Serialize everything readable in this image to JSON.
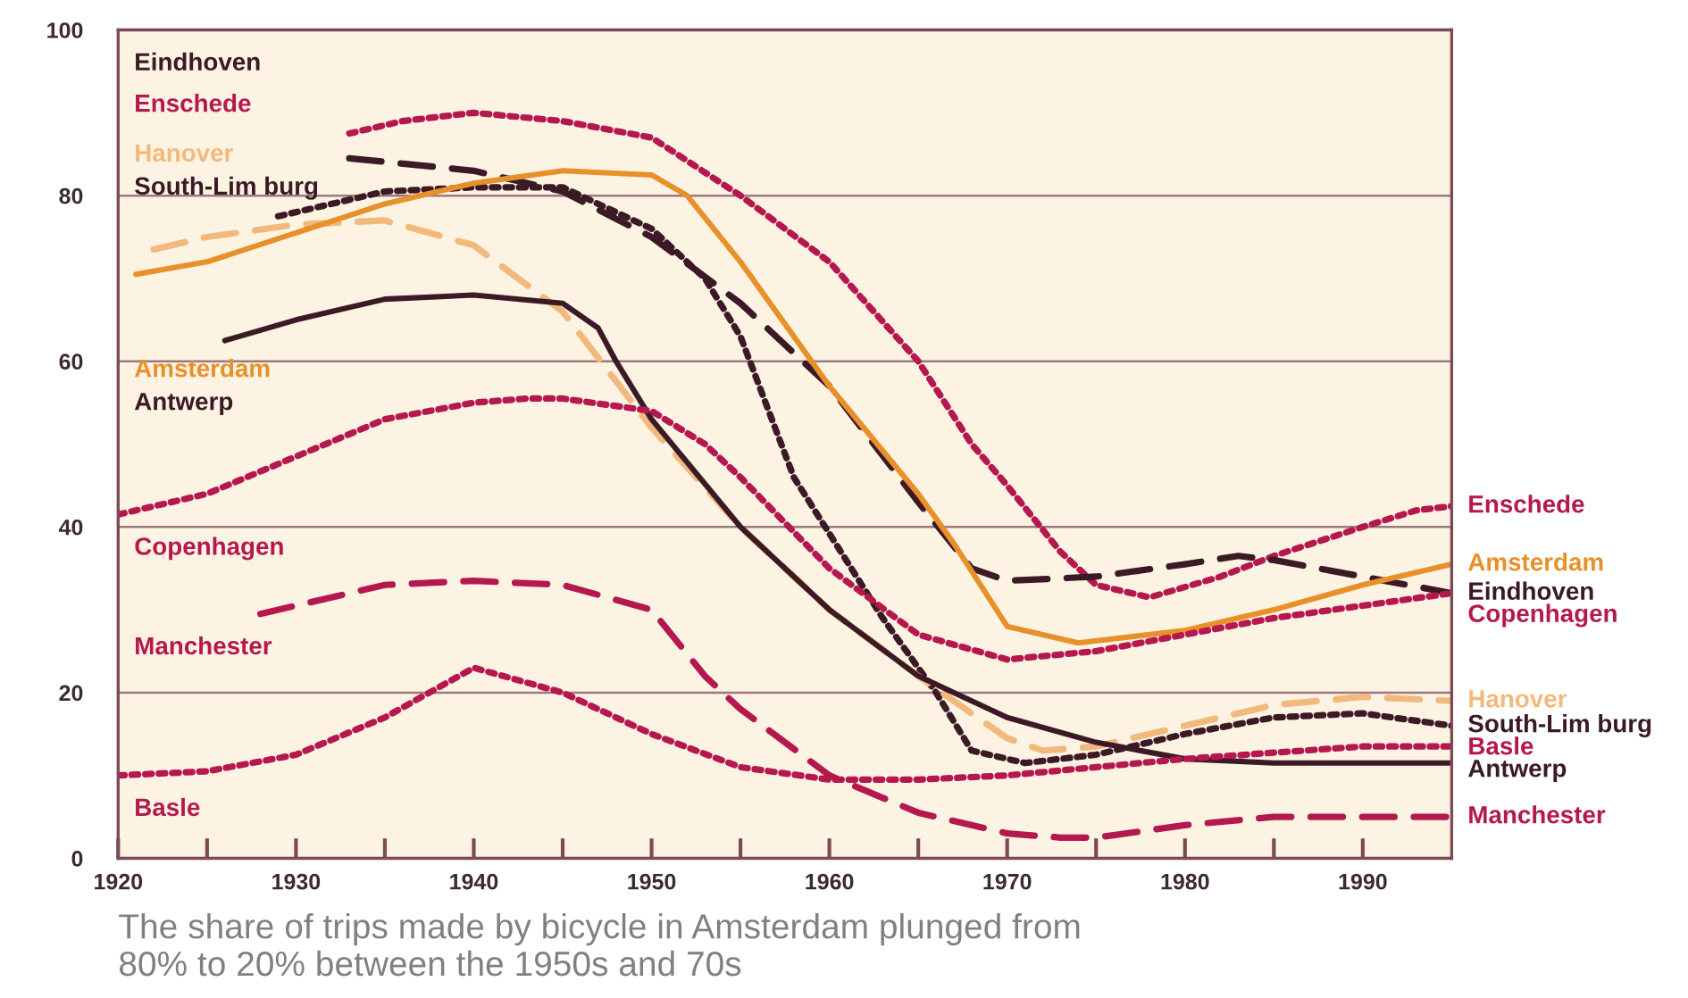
{
  "chart_data": {
    "type": "line",
    "annotations": [
      "The share of trips made by bicycle in Amsterdam plunged from\n80% to 20% between the 1950s and 70s"
    ],
    "xlim": [
      1920,
      1995
    ],
    "ylim": [
      0,
      100
    ],
    "xticks": [
      1920,
      {
        "value": 1925,
        "label": null
      },
      1930,
      {
        "value": 1935,
        "label": null
      },
      1940,
      {
        "value": 1945,
        "label": null
      },
      1950,
      {
        "value": 1955,
        "label": null
      },
      1960,
      {
        "value": 1965,
        "label": null
      },
      1970,
      {
        "value": 1975,
        "label": null
      },
      1980,
      {
        "value": 1985,
        "label": null
      },
      1990
    ],
    "yticks": [
      0,
      20,
      40,
      60,
      80,
      100
    ],
    "grid": "y",
    "legend": false,
    "marker": "none",
    "series": [
      {
        "name": "Enschede",
        "color": "#b5174f",
        "line_style": "dotted",
        "x": [
          1933,
          1936,
          1940,
          1945,
          1950,
          1955,
          1960,
          1965,
          1968,
          1970,
          1973,
          1975,
          1978,
          1982,
          1985,
          1990,
          1993,
          1995
        ],
        "values": [
          87.5,
          89,
          90,
          89,
          87,
          80,
          72,
          60,
          50,
          45,
          37,
          33,
          31.5,
          34,
          36.5,
          40,
          42,
          42.5
        ]
      },
      {
        "name": "Eindhoven",
        "color": "#3b1a26",
        "line_style": "dashed",
        "x": [
          1933,
          1940,
          1945,
          1950,
          1955,
          1960,
          1965,
          1968,
          1970,
          1975,
          1980,
          1983,
          1985,
          1990,
          1995
        ],
        "values": [
          84.5,
          83,
          80.5,
          75,
          67,
          57,
          43,
          35,
          33.5,
          34,
          35.5,
          36.5,
          36,
          34,
          32
        ]
      },
      {
        "name": "South-Lim burg",
        "color": "#3b1a26",
        "line_style": "dotted",
        "x": [
          1929,
          1935,
          1940,
          1945,
          1950,
          1953,
          1955,
          1958,
          1963,
          1966,
          1968,
          1971,
          1975,
          1980,
          1985,
          1990,
          1995
        ],
        "values": [
          77.5,
          80.5,
          81,
          81,
          76,
          70,
          63,
          46,
          29,
          20,
          13,
          11.5,
          12.5,
          15,
          17,
          17.5,
          16
        ]
      },
      {
        "name": "Hanover",
        "color": "#f2b97c",
        "line_style": "dashed",
        "x": [
          1922,
          1925,
          1930,
          1935,
          1940,
          1945,
          1950,
          1955,
          1960,
          1965,
          1970,
          1972,
          1975,
          1980,
          1985,
          1990,
          1995
        ],
        "values": [
          73.5,
          75,
          76.5,
          77,
          74,
          66,
          52,
          40,
          30,
          22,
          14.5,
          13,
          13.5,
          16,
          18.5,
          19.5,
          19
        ]
      },
      {
        "name": "Amsterdam",
        "color": "#e8902a",
        "line_style": "solid",
        "x": [
          1921,
          1925,
          1930,
          1935,
          1940,
          1945,
          1950,
          1952,
          1955,
          1960,
          1965,
          1967,
          1970,
          1974,
          1980,
          1985,
          1990,
          1995
        ],
        "values": [
          70.5,
          72,
          75.5,
          79,
          81.5,
          83,
          82.5,
          80,
          72,
          57,
          44,
          38,
          28,
          26,
          27.5,
          30,
          33,
          35.5
        ]
      },
      {
        "name": "Antwerp",
        "color": "#3b1a26",
        "line_style": "solid",
        "x": [
          1926,
          1930,
          1935,
          1940,
          1945,
          1947,
          1948,
          1950,
          1955,
          1960,
          1965,
          1970,
          1975,
          1980,
          1985,
          1990,
          1995
        ],
        "values": [
          62.5,
          65,
          67.5,
          68,
          67,
          64,
          60,
          53,
          40,
          30,
          22,
          17,
          14,
          12,
          11.5,
          11.5,
          11.5
        ]
      },
      {
        "name": "Copenhagen",
        "color": "#b5174f",
        "line_style": "dotted",
        "x": [
          1920,
          1925,
          1930,
          1935,
          1940,
          1943,
          1945,
          1950,
          1953,
          1955,
          1960,
          1965,
          1970,
          1975,
          1980,
          1985,
          1990,
          1995
        ],
        "values": [
          41.5,
          44,
          48.5,
          53,
          55,
          55.5,
          55.5,
          54,
          50,
          46,
          35,
          27,
          24,
          25,
          27,
          29,
          30.5,
          32
        ]
      },
      {
        "name": "Manchester",
        "color": "#b5174f",
        "line_style": "dashed",
        "x": [
          1928,
          1930,
          1935,
          1940,
          1945,
          1950,
          1953,
          1955,
          1960,
          1965,
          1970,
          1973,
          1975,
          1980,
          1985,
          1990,
          1995
        ],
        "values": [
          29.5,
          30.5,
          33,
          33.5,
          33,
          30,
          22,
          18,
          10,
          5.5,
          3,
          2.5,
          2.5,
          4,
          5,
          5,
          5
        ]
      },
      {
        "name": "Basle",
        "color": "#b5174f",
        "line_style": "dotted",
        "x": [
          1920,
          1925,
          1930,
          1935,
          1940,
          1945,
          1950,
          1955,
          1960,
          1965,
          1970,
          1980,
          1990,
          1995
        ],
        "values": [
          10,
          10.5,
          12.5,
          17,
          23,
          20,
          15,
          11,
          9.5,
          9.5,
          10,
          12,
          13.5,
          13.5
        ]
      }
    ]
  }
}
